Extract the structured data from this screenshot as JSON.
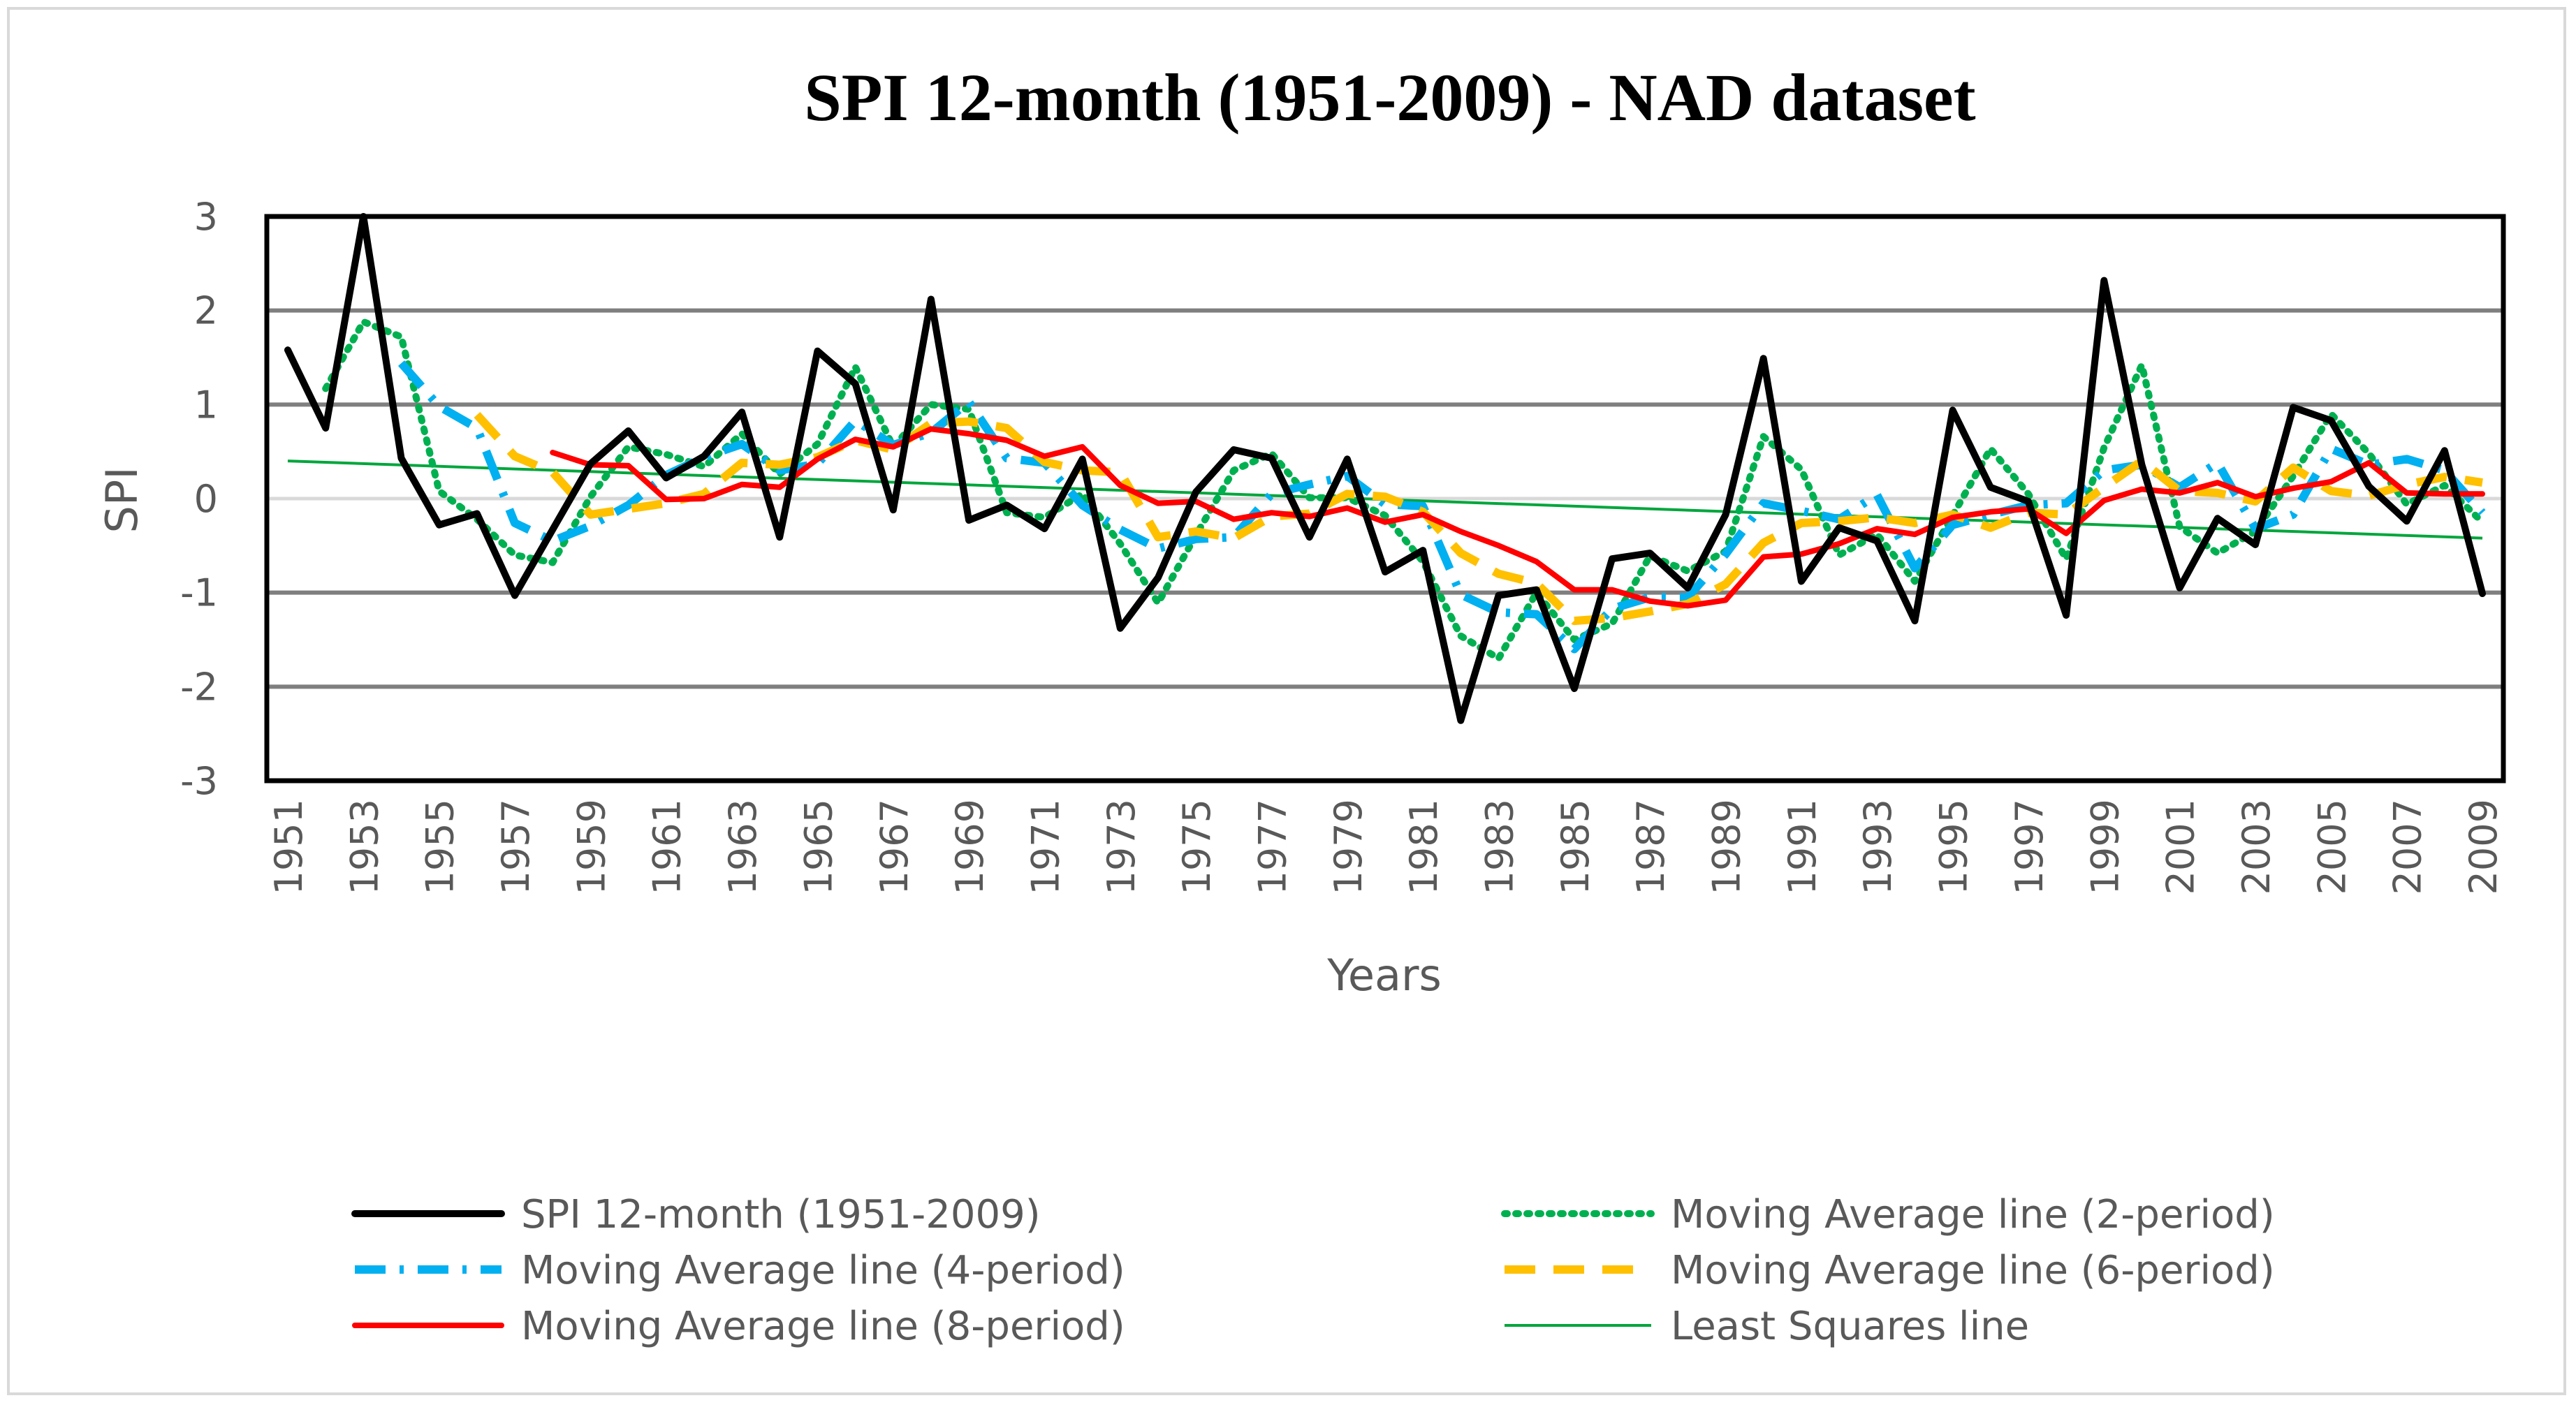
{
  "chart_data": {
    "type": "line",
    "title": "SPI 12-month (1951-2009) - NAD dataset",
    "xlabel": "Years",
    "ylabel": "SPI",
    "ylim": [
      -3,
      3
    ],
    "yticks": [
      "3",
      "2",
      "1",
      "0",
      "-1",
      "-2",
      "-3"
    ],
    "ytick_values": [
      3,
      2,
      1,
      0,
      -1,
      -2,
      -3
    ],
    "xlim": [
      1951,
      2009
    ],
    "xtick_labels": [
      "1951",
      "1953",
      "1955",
      "1957",
      "1959",
      "1961",
      "1963",
      "1965",
      "1967",
      "1969",
      "1971",
      "1973",
      "1975",
      "1977",
      "1979",
      "1981",
      "1983",
      "1985",
      "1987",
      "1989",
      "1991",
      "1993",
      "1995",
      "1997",
      "1999",
      "2001",
      "2003",
      "2005",
      "2007",
      "2009"
    ],
    "grid": true,
    "legend_position": "bottom",
    "x": [
      1951,
      1952,
      1953,
      1954,
      1955,
      1956,
      1957,
      1958,
      1959,
      1960,
      1961,
      1962,
      1963,
      1964,
      1965,
      1966,
      1967,
      1968,
      1969,
      1970,
      1971,
      1972,
      1973,
      1974,
      1975,
      1976,
      1977,
      1978,
      1979,
      1980,
      1981,
      1982,
      1983,
      1984,
      1985,
      1986,
      1987,
      1988,
      1989,
      1990,
      1991,
      1992,
      1993,
      1994,
      1995,
      1996,
      1997,
      1998,
      1999,
      2000,
      2001,
      2002,
      2003,
      2004,
      2005,
      2006,
      2007,
      2008,
      2009
    ],
    "series": [
      {
        "name": "SPI 12-month (1951-2009)",
        "color": "#000000",
        "style": "solid",
        "values": [
          1.58,
          0.75,
          3.0,
          0.43,
          -0.28,
          -0.16,
          -1.03,
          -0.33,
          0.37,
          0.72,
          0.22,
          0.45,
          0.92,
          -0.41,
          1.57,
          1.22,
          -0.12,
          2.12,
          -0.23,
          -0.07,
          -0.32,
          0.42,
          -1.38,
          -0.84,
          0.07,
          0.52,
          0.43,
          -0.41,
          0.42,
          -0.78,
          -0.55,
          -2.36,
          -1.03,
          -0.97,
          -2.02,
          -0.64,
          -0.58,
          -0.95,
          -0.17,
          1.49,
          -0.88,
          -0.31,
          -0.45,
          -1.3,
          0.94,
          0.12,
          -0.03,
          -1.24,
          2.32,
          0.36,
          -0.95,
          -0.21,
          -0.49,
          0.97,
          0.83,
          0.13,
          -0.24,
          0.51,
          -1.01
        ]
      },
      {
        "name": "Moving Average line (2-period)",
        "color": "#00b050",
        "style": "dotted",
        "values": [
          null,
          1.17,
          1.88,
          1.72,
          0.08,
          -0.22,
          -0.6,
          -0.68,
          0.02,
          0.55,
          0.47,
          0.34,
          0.69,
          0.26,
          0.58,
          1.4,
          0.55,
          1.0,
          0.95,
          -0.15,
          -0.2,
          0.05,
          -0.48,
          -1.11,
          -0.39,
          0.3,
          0.48,
          0.01,
          0.01,
          -0.18,
          -0.67,
          -1.46,
          -1.7,
          -1.0,
          -1.5,
          -1.33,
          -0.61,
          -0.77,
          -0.56,
          0.66,
          0.31,
          -0.6,
          -0.38,
          -0.88,
          -0.18,
          0.53,
          0.05,
          -0.64,
          0.54,
          1.42,
          -0.3,
          -0.58,
          -0.35,
          0.24,
          0.9,
          0.48,
          -0.06,
          0.14,
          -0.25
        ]
      },
      {
        "name": "Moving Average line (4-period)",
        "color": "#00b0f0",
        "style": "dashdot",
        "values": [
          null,
          null,
          null,
          1.44,
          0.98,
          0.75,
          -0.26,
          -0.45,
          -0.29,
          -0.07,
          0.25,
          0.44,
          0.58,
          0.3,
          0.37,
          0.83,
          0.57,
          0.7,
          1.03,
          0.43,
          0.38,
          -0.07,
          -0.33,
          -0.53,
          -0.43,
          -0.41,
          0.05,
          0.15,
          0.24,
          -0.06,
          -0.08,
          -1.02,
          -1.21,
          -1.23,
          -1.6,
          -1.17,
          -1.05,
          -1.05,
          -0.59,
          -0.05,
          -0.13,
          -0.22,
          0.04,
          -0.74,
          -0.28,
          -0.17,
          -0.07,
          -0.05,
          0.3,
          0.36,
          0.12,
          0.38,
          -0.32,
          -0.17,
          0.53,
          0.36,
          0.42,
          0.3,
          -0.15
        ]
      },
      {
        "name": "Moving Average line (6-period)",
        "color": "#ffc000",
        "style": "dashed",
        "values": [
          null,
          null,
          null,
          null,
          null,
          0.89,
          0.45,
          0.28,
          -0.17,
          -0.11,
          -0.05,
          0.05,
          0.38,
          0.36,
          0.44,
          0.62,
          0.52,
          0.8,
          0.82,
          0.75,
          0.39,
          0.3,
          0.28,
          -0.41,
          -0.35,
          -0.42,
          -0.19,
          -0.16,
          0.05,
          0.02,
          -0.14,
          -0.58,
          -0.8,
          -0.9,
          -1.3,
          -1.27,
          -1.2,
          -1.12,
          -0.91,
          -0.47,
          -0.26,
          -0.24,
          -0.2,
          -0.26,
          -0.17,
          -0.31,
          -0.15,
          -0.17,
          0.12,
          0.4,
          0.08,
          0.06,
          -0.03,
          0.33,
          0.08,
          0.03,
          0.15,
          0.23,
          0.17
        ]
      },
      {
        "name": "Moving Average line (8-period)",
        "color": "#ff0000",
        "style": "solid",
        "values": [
          null,
          null,
          null,
          null,
          null,
          null,
          null,
          0.49,
          0.36,
          0.35,
          -0.01,
          0.0,
          0.15,
          0.12,
          0.42,
          0.63,
          0.55,
          0.74,
          0.69,
          0.62,
          0.45,
          0.55,
          0.14,
          -0.05,
          -0.03,
          -0.22,
          -0.15,
          -0.19,
          -0.1,
          -0.25,
          -0.17,
          -0.35,
          -0.5,
          -0.67,
          -0.97,
          -0.97,
          -1.09,
          -1.14,
          -1.08,
          -0.62,
          -0.59,
          -0.48,
          -0.32,
          -0.38,
          -0.2,
          -0.14,
          -0.11,
          -0.37,
          -0.02,
          0.1,
          0.06,
          0.17,
          0.02,
          0.11,
          0.18,
          0.38,
          0.06,
          0.05,
          0.05
        ]
      },
      {
        "name": "Least Squares line",
        "color": "#00a63c",
        "style": "thin",
        "values": [
          0.4,
          null,
          null,
          null,
          null,
          null,
          null,
          null,
          null,
          null,
          null,
          null,
          null,
          null,
          null,
          null,
          null,
          null,
          null,
          null,
          null,
          null,
          null,
          null,
          null,
          null,
          null,
          null,
          null,
          null,
          null,
          null,
          null,
          null,
          null,
          null,
          null,
          null,
          null,
          null,
          null,
          null,
          null,
          null,
          null,
          null,
          null,
          null,
          null,
          null,
          null,
          null,
          null,
          null,
          null,
          null,
          null,
          null,
          -0.42
        ]
      }
    ]
  }
}
